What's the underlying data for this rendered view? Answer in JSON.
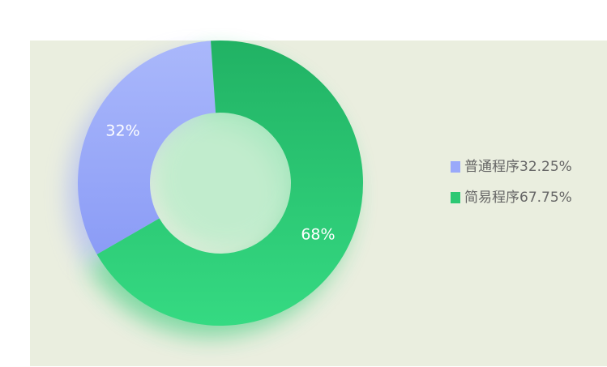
{
  "chart_data": {
    "type": "pie",
    "categories": [
      "普通程序32.25%",
      "简易程序67.75%"
    ],
    "values": [
      32.25,
      67.75
    ],
    "value_labels": [
      "32%",
      "68%"
    ],
    "colors": [
      "#9aa9fa",
      "#2cc873"
    ],
    "legend": "right"
  }
}
